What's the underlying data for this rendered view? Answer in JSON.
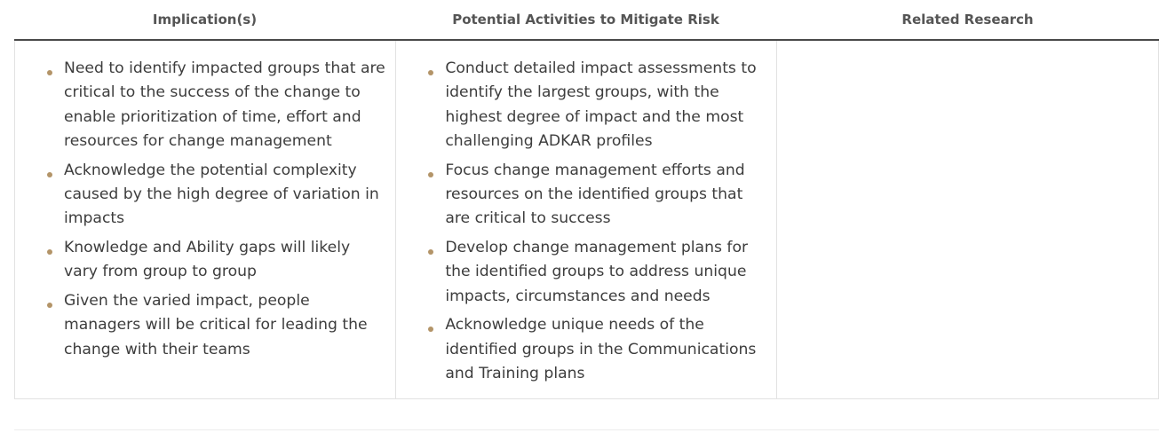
{
  "headers": {
    "implications": "Implication(s)",
    "activities": "Potential Activities to Mitigate Risk",
    "research": "Related Research"
  },
  "implications": [
    "Need to identify impacted groups that are critical to the success of the change to enable prioritization of time, effort and resources for change management",
    "Acknowledge the potential complexity caused by the high degree of variation in impacts",
    "Knowledge and Ability gaps will likely vary from group to group",
    "Given the varied impact, people managers will be critical for leading the change with their teams"
  ],
  "activities": [
    "Conduct detailed impact assessments to identify the largest groups, with the highest degree of impact and the most challenging ADKAR profiles",
    "Focus change management efforts and resources on the identified groups that are critical to success",
    "Develop change management plans for the identified groups to address unique impacts, circumstances and needs",
    "Acknowledge unique needs of the identified groups in the Communications and Training plans"
  ],
  "colors": {
    "bullet": "#b39468",
    "header_rule": "#4a4a4a",
    "cell_border": "#e2e2e2"
  }
}
